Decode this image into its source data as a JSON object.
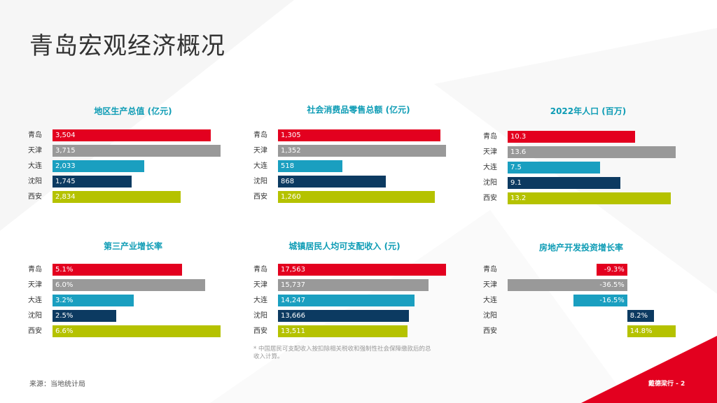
{
  "page": {
    "title": "青岛宏观经济概况",
    "footnote_marker": "*",
    "footnote": "中国居民可支配收入按扣除相关税收和强制性社会保障缴款后的总收入计算。",
    "source": "来源：当地统计局",
    "page_label": "戴德梁行 - 2"
  },
  "colors": {
    "青岛": "#e3001f",
    "天津": "#999999",
    "大连": "#1a9fc0",
    "沈阳": "#0c3a61",
    "西安": "#b5c200",
    "accent": "#0e9cb5",
    "corner": "#e3001f"
  },
  "chart_data": [
    {
      "type": "bar",
      "title": "地区生产总值 (亿元)",
      "categories": [
        "青岛",
        "天津",
        "大连",
        "沈阳",
        "西安"
      ],
      "values": [
        3504,
        3715,
        2033,
        1745,
        2834
      ],
      "labels": [
        "3,504",
        "3,715",
        "2,033",
        "1,745",
        "2,834"
      ]
    },
    {
      "type": "bar",
      "title": "社会消费品零售总额 (亿元)",
      "categories": [
        "青岛",
        "天津",
        "大连",
        "沈阳",
        "西安"
      ],
      "values": [
        1305,
        1352,
        518,
        868,
        1260
      ],
      "labels": [
        "1,305",
        "1,352",
        "518",
        "868",
        "1,260"
      ]
    },
    {
      "type": "bar",
      "title": "2022年人口 (百万)",
      "categories": [
        "青岛",
        "天津",
        "大连",
        "沈阳",
        "西安"
      ],
      "values": [
        10.3,
        13.6,
        7.5,
        9.1,
        13.2
      ],
      "labels": [
        "10.3",
        "13.6",
        "7.5",
        "9.1",
        "13.2"
      ]
    },
    {
      "type": "bar",
      "title": "第三产业增长率",
      "categories": [
        "青岛",
        "天津",
        "大连",
        "沈阳",
        "西安"
      ],
      "values": [
        5.1,
        6.0,
        3.2,
        2.5,
        6.6
      ],
      "labels": [
        "5.1%",
        "6.0%",
        "3.2%",
        "2.5%",
        "6.6%"
      ]
    },
    {
      "type": "bar",
      "title": "城镇居民人均可支配收入 (元)",
      "categories": [
        "青岛",
        "天津",
        "大连",
        "沈阳",
        "西安"
      ],
      "values": [
        17563,
        15737,
        14247,
        13666,
        13511
      ],
      "labels": [
        "17,563",
        "15,737",
        "14,247",
        "13,666",
        "13,511"
      ]
    },
    {
      "type": "bar",
      "title": "房地产开发投资增长率",
      "categories": [
        "青岛",
        "天津",
        "大连",
        "沈阳",
        "西安"
      ],
      "values": [
        -9.3,
        -36.5,
        -16.5,
        8.2,
        14.8
      ],
      "labels": [
        "-9.3%",
        "-36.5%",
        "-16.5%",
        "8.2%",
        "14.8%"
      ]
    }
  ]
}
